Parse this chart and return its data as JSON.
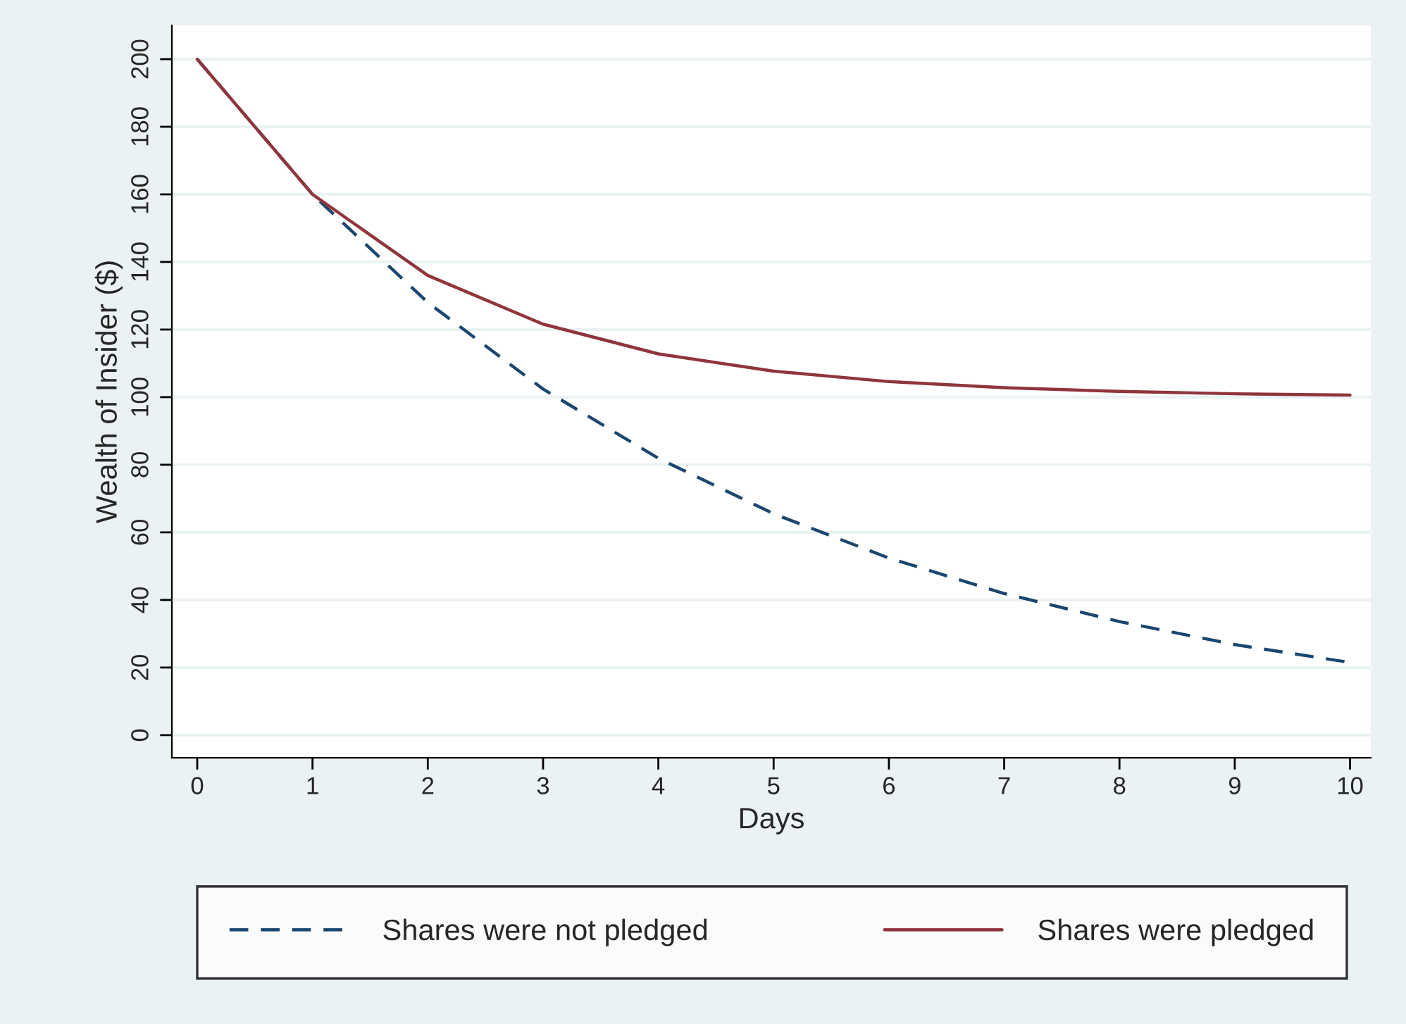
{
  "chart_data": {
    "type": "line",
    "xlabel": "Days",
    "ylabel": "Wealth of Insider ($)",
    "x": [
      0,
      1,
      2,
      3,
      4,
      5,
      6,
      7,
      8,
      9,
      10
    ],
    "series": [
      {
        "name": "Shares were not pledged",
        "color": "#1a476f",
        "line_style": "dashed",
        "values": [
          200,
          160,
          128,
          102.4,
          81.9,
          65.5,
          52.4,
          41.9,
          33.6,
          26.8,
          21.5
        ]
      },
      {
        "name": "Shares were pledged",
        "color": "#90353b",
        "line_style": "solid",
        "values": [
          200,
          160,
          136,
          121.6,
          112.8,
          107.7,
          104.6,
          102.8,
          101.7,
          101,
          100.6
        ]
      }
    ],
    "xlim": [
      -0.22,
      10.18
    ],
    "xticks": [
      0,
      1,
      2,
      3,
      4,
      5,
      6,
      7,
      8,
      9,
      10
    ],
    "ylim": [
      -6.7,
      210
    ],
    "yticks": [
      0,
      20,
      40,
      60,
      80,
      100,
      120,
      140,
      160,
      180,
      200
    ],
    "grid": "y",
    "legend": "bottom",
    "marker": "none"
  }
}
